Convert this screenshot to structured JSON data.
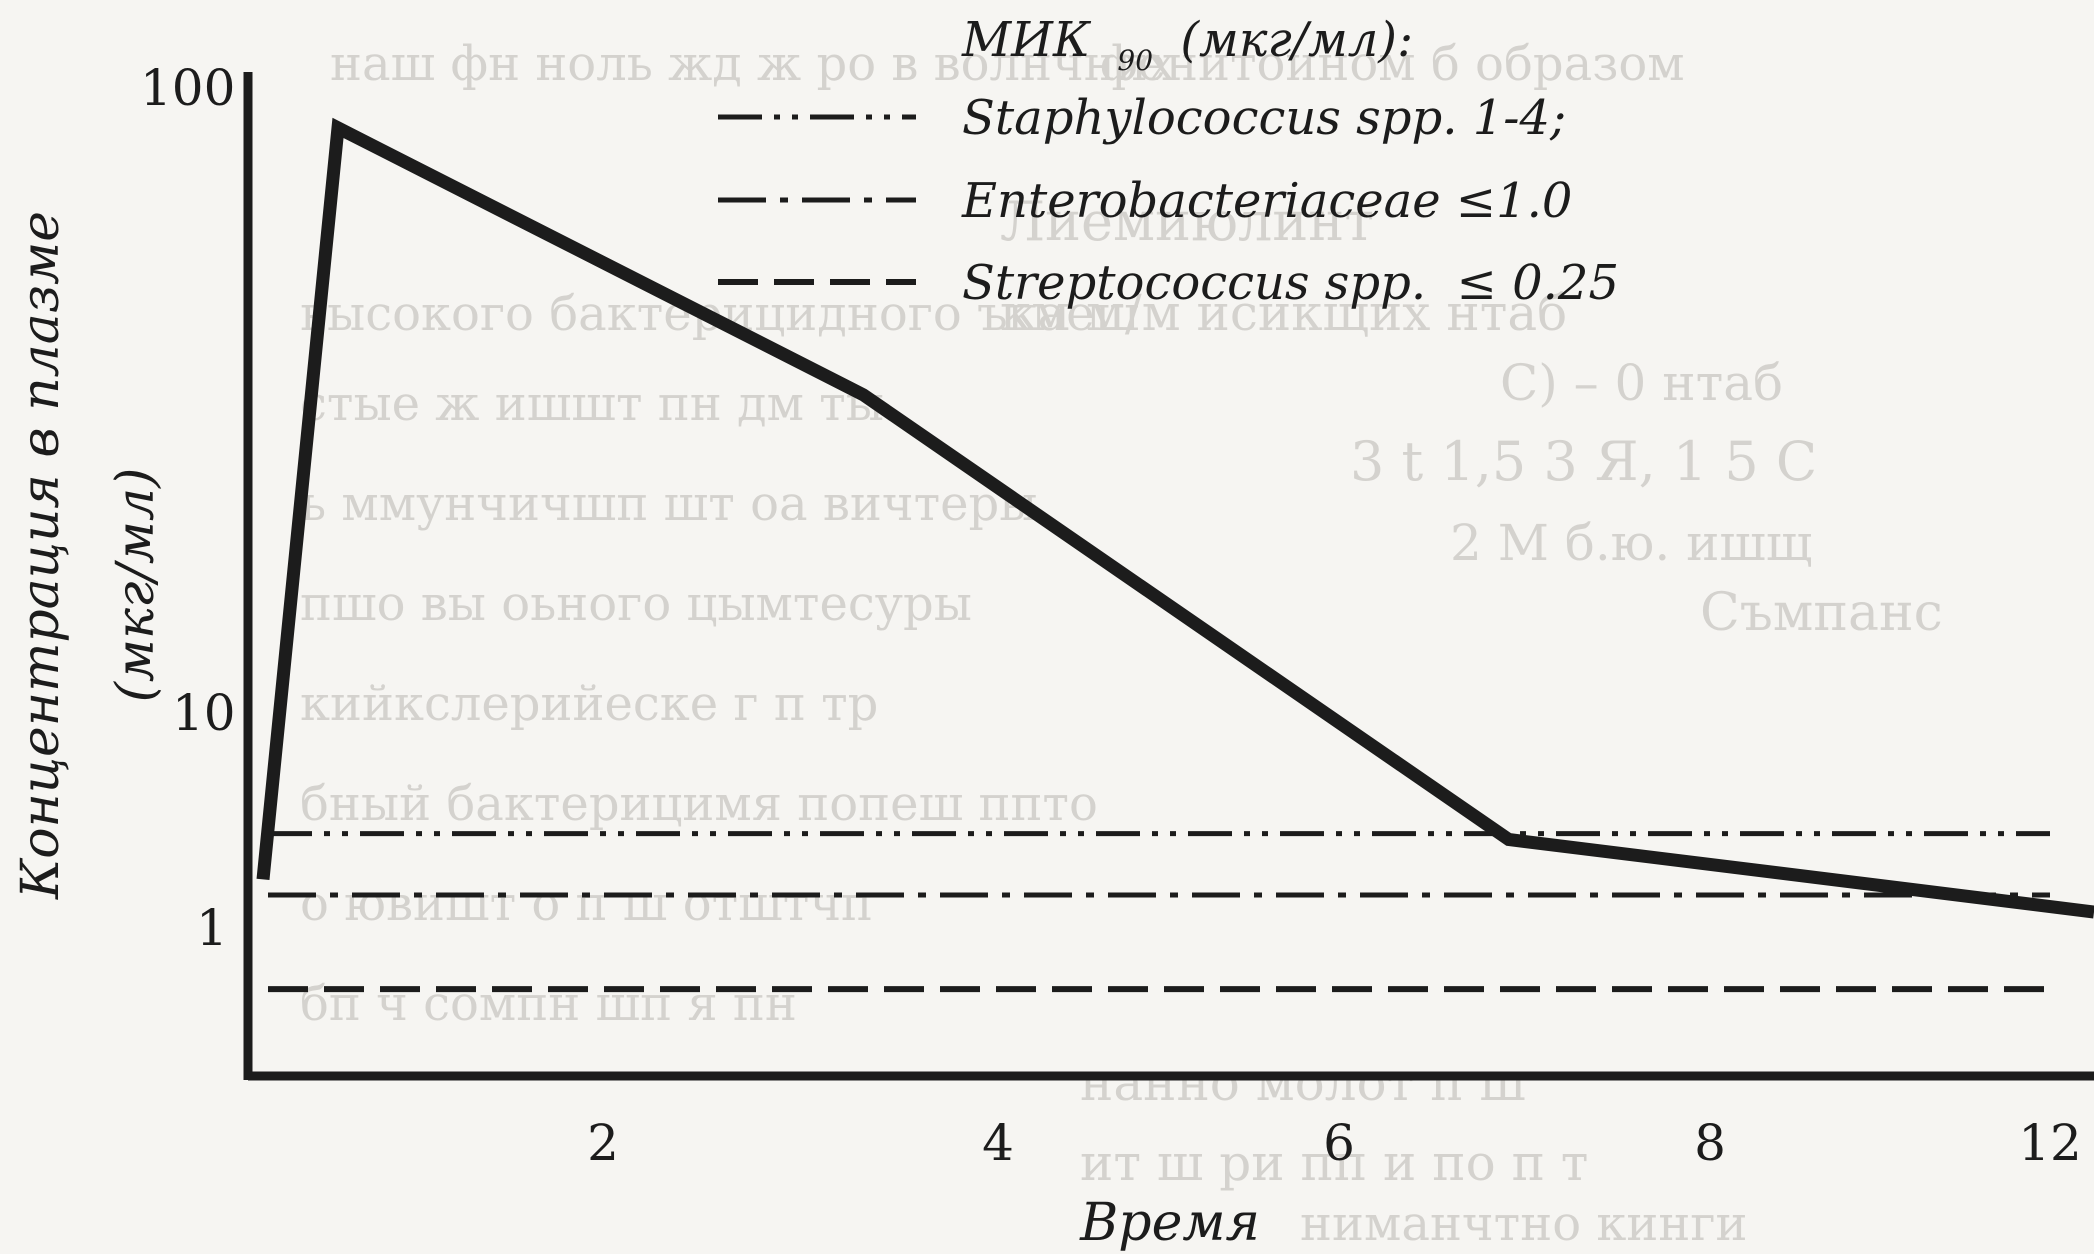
{
  "chart_data": {
    "type": "line",
    "title": "",
    "xlabel": "Время",
    "ylabel_line1": "Концентрация в плазме",
    "ylabel_line2": "(мкг/мл)",
    "y_scale": "log",
    "ylim": [
      0.4,
      100
    ],
    "xlim": [
      0,
      12.3
    ],
    "x_ticks": [
      2,
      4,
      6,
      8,
      12
    ],
    "x_tick_labels": [
      "2",
      "4",
      "6",
      "8",
      "12"
    ],
    "y_ticks": [
      1,
      10,
      100
    ],
    "y_tick_labels": [
      "1",
      "10",
      "100"
    ],
    "grid": false,
    "series": [
      {
        "x": [
          0.1,
          0.6,
          4.1,
          8.4,
          12.3
        ],
        "y": [
          1.2,
          80,
          18,
          1.5,
          1.0
        ],
        "color": "#1c1c1c",
        "style": "solid"
      }
    ],
    "legend": {
      "title": "МИК",
      "title_sub": "90",
      "title_units": "(мкг/мл):",
      "placement": "top-center",
      "entries": [
        {
          "name": "Staphylococcus spp. 1-4;",
          "style": "dash-dot-dot",
          "y": 1.55
        },
        {
          "name": "Enterobacteriaceae ≤1.0",
          "style": "dash-dot",
          "y": 1.1
        },
        {
          "name": "Streptococcus spp.  ≤ 0.25",
          "style": "dashed",
          "y": 0.65
        }
      ]
    }
  }
}
